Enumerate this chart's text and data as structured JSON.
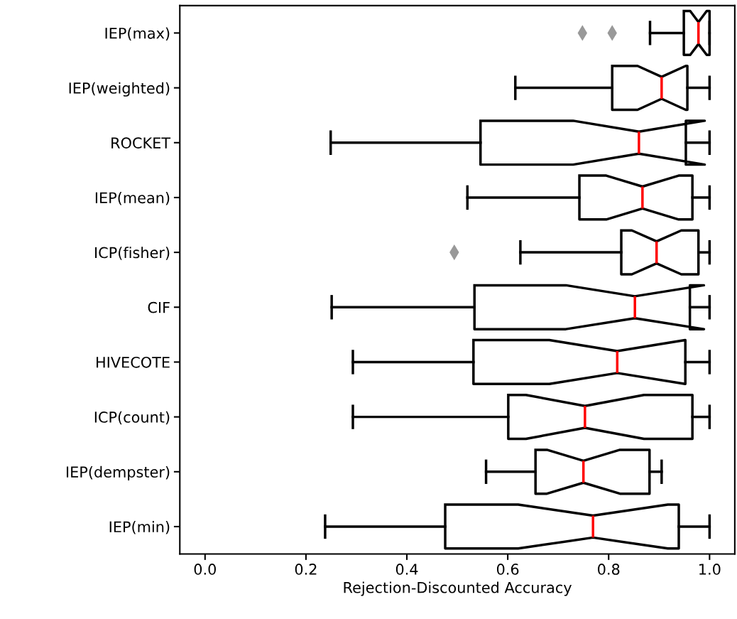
{
  "chart_data": {
    "type": "box",
    "orientation": "horizontal",
    "xlabel": "Rejection-Discounted Accuracy",
    "categories": [
      "IEP(max)",
      "IEP(weighted)",
      "ROCKET",
      "IEP(mean)",
      "ICP(fisher)",
      "CIF",
      "HIVECOTE",
      "ICP(count)",
      "IEP(dempster)",
      "IEP(min)"
    ],
    "boxes": [
      {
        "low": 0.882,
        "q1": 0.949,
        "median": 0.978,
        "q3": 1.0,
        "high": 1.0,
        "outliers": [
          0.748,
          0.807
        ]
      },
      {
        "low": 0.615,
        "q1": 0.807,
        "median": 0.905,
        "q3": 0.956,
        "high": 1.0
      },
      {
        "low": 0.249,
        "q1": 0.546,
        "median": 0.86,
        "q3": 0.953,
        "high": 1.0
      },
      {
        "low": 0.52,
        "q1": 0.742,
        "median": 0.867,
        "q3": 0.966,
        "high": 1.0
      },
      {
        "low": 0.625,
        "q1": 0.825,
        "median": 0.895,
        "q3": 0.978,
        "high": 1.0,
        "outliers": [
          0.494
        ]
      },
      {
        "low": 0.251,
        "q1": 0.534,
        "median": 0.852,
        "q3": 0.961,
        "high": 1.0
      },
      {
        "low": 0.293,
        "q1": 0.532,
        "median": 0.817,
        "q3": 0.952,
        "high": 1.0
      },
      {
        "low": 0.293,
        "q1": 0.601,
        "median": 0.753,
        "q3": 0.966,
        "high": 1.0
      },
      {
        "low": 0.557,
        "q1": 0.655,
        "median": 0.75,
        "q3": 0.881,
        "high": 0.905
      },
      {
        "low": 0.238,
        "q1": 0.476,
        "median": 0.769,
        "q3": 0.939,
        "high": 1.0
      }
    ],
    "color": "#000000",
    "marker": "diamond",
    "xlim": [
      -0.05,
      1.05
    ],
    "xticks": [
      {
        "value": 0,
        "label": "0.0"
      },
      0.2,
      0.4,
      0.6,
      0.8,
      {
        "value": 1,
        "label": "1.0"
      }
    ],
    "grid": false
  }
}
